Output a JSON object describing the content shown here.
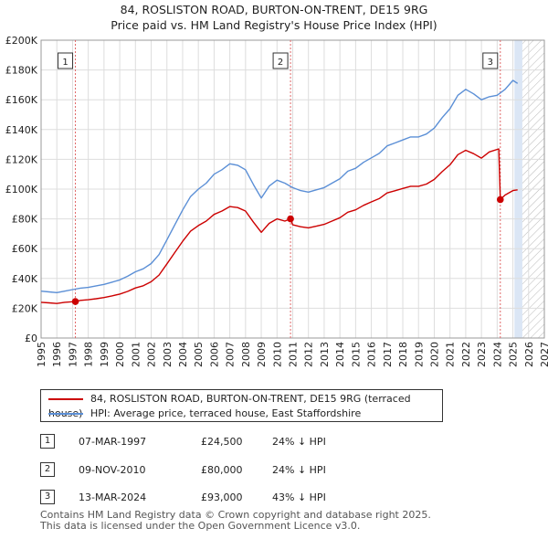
{
  "title_line1": "84, ROSLISTON ROAD, BURTON-ON-TRENT, DE15 9RG",
  "title_line2": "Price paid vs. HM Land Registry's House Price Index (HPI)",
  "colors": {
    "property": "#cc0000",
    "hpi": "#5b8fd6",
    "marker": "#cc0000",
    "vline": "#e06666"
  },
  "legend": {
    "property_label": "84, ROSLISTON ROAD, BURTON-ON-TRENT, DE15 9RG (terraced house)",
    "hpi_label": "HPI: Average price, terraced house, East Staffordshire"
  },
  "sales": [
    {
      "num": "1",
      "date": "07-MAR-1997",
      "price": "£24,500",
      "hpi_diff": "24% ↓ HPI",
      "year": 1997.18,
      "value": 24500
    },
    {
      "num": "2",
      "date": "09-NOV-2010",
      "price": "£80,000",
      "hpi_diff": "24% ↓ HPI",
      "year": 2010.86,
      "value": 80000
    },
    {
      "num": "3",
      "date": "13-MAR-2024",
      "price": "£93,000",
      "hpi_diff": "43% ↓ HPI",
      "year": 2024.2,
      "value": 93000
    }
  ],
  "footer_line1": "Contains HM Land Registry data © Crown copyright and database right 2025.",
  "footer_line2": "This data is licensed under the Open Government Licence v3.0.",
  "chart_data": {
    "type": "line",
    "title": "Price paid vs. HM Land Registry's House Price Index (HPI)",
    "xlim": [
      1995,
      2027
    ],
    "ylim": [
      0,
      200000
    ],
    "x_ticks": [
      "1995",
      "1996",
      "1997",
      "1998",
      "1999",
      "2000",
      "2001",
      "2002",
      "2003",
      "2004",
      "2005",
      "2006",
      "2007",
      "2008",
      "2009",
      "2010",
      "2011",
      "2012",
      "2013",
      "2014",
      "2015",
      "2016",
      "2017",
      "2018",
      "2019",
      "2020",
      "2021",
      "2022",
      "2023",
      "2024",
      "2025",
      "2026",
      "2027"
    ],
    "y_ticks": [
      {
        "value": 0,
        "label": "£0"
      },
      {
        "value": 20000,
        "label": "£20K"
      },
      {
        "value": 40000,
        "label": "£40K"
      },
      {
        "value": 60000,
        "label": "£60K"
      },
      {
        "value": 80000,
        "label": "£80K"
      },
      {
        "value": 100000,
        "label": "£100K"
      },
      {
        "value": 120000,
        "label": "£120K"
      },
      {
        "value": 140000,
        "label": "£140K"
      },
      {
        "value": 160000,
        "label": "£160K"
      },
      {
        "value": 180000,
        "label": "£180K"
      },
      {
        "value": 200000,
        "label": "£200K"
      }
    ],
    "shaded_from": 2025.1,
    "hatched_from": 2025.6,
    "series": [
      {
        "name": "HPI: Average price, terraced house, East Staffordshire",
        "x": [
          1995,
          1995.5,
          1996,
          1996.5,
          1997,
          1997.5,
          1998,
          1998.5,
          1999,
          1999.5,
          2000,
          2000.5,
          2001,
          2001.5,
          2002,
          2002.5,
          2003,
          2003.5,
          2004,
          2004.5,
          2005,
          2005.5,
          2006,
          2006.5,
          2007,
          2007.5,
          2008,
          2008.5,
          2009,
          2009.5,
          2010,
          2010.5,
          2011,
          2011.5,
          2012,
          2012.5,
          2013,
          2013.5,
          2014,
          2014.5,
          2015,
          2015.5,
          2016,
          2016.5,
          2017,
          2017.5,
          2018,
          2018.5,
          2019,
          2019.5,
          2020,
          2020.5,
          2021,
          2021.5,
          2022,
          2022.5,
          2023,
          2023.5,
          2024,
          2024.5,
          2025,
          2025.3
        ],
        "values": [
          31500,
          31000,
          30500,
          31500,
          32500,
          33500,
          34000,
          35000,
          36000,
          37500,
          39000,
          41500,
          44500,
          46500,
          50000,
          56000,
          66000,
          76000,
          86000,
          95000,
          100000,
          104000,
          110000,
          113000,
          117000,
          116000,
          113000,
          103000,
          94000,
          102000,
          106000,
          104000,
          101000,
          99000,
          98000,
          99500,
          101000,
          104000,
          107000,
          112000,
          114000,
          118000,
          121000,
          124000,
          129000,
          131000,
          133000,
          135000,
          135000,
          137000,
          141000,
          148000,
          154000,
          163000,
          167000,
          164000,
          160000,
          162000,
          163000,
          167000,
          173000,
          171000
        ]
      },
      {
        "name": "84, ROSLISTON ROAD, BURTON-ON-TRENT, DE15 9RG (terraced house)",
        "x": [
          1995,
          1995.5,
          1996,
          1996.5,
          1997.18,
          1997.5,
          1998,
          1998.5,
          1999,
          1999.5,
          2000,
          2000.5,
          2001,
          2001.5,
          2002,
          2002.5,
          2003,
          2003.5,
          2004,
          2004.5,
          2005,
          2005.5,
          2006,
          2006.5,
          2007,
          2007.5,
          2008,
          2008.5,
          2009,
          2009.5,
          2010,
          2010.5,
          2010.86,
          2011,
          2011.5,
          2012,
          2012.5,
          2013,
          2013.5,
          2014,
          2014.5,
          2015,
          2015.5,
          2016,
          2016.5,
          2017,
          2017.5,
          2018,
          2018.5,
          2019,
          2019.5,
          2020,
          2020.5,
          2021,
          2021.5,
          2022,
          2022.5,
          2023,
          2023.5,
          2024.1,
          2024.2,
          2024.5,
          2025,
          2025.3
        ],
        "values": [
          24000,
          23600,
          23200,
          24000,
          24500,
          25300,
          25700,
          26400,
          27200,
          28300,
          29500,
          31300,
          33600,
          35100,
          37800,
          42300,
          49800,
          57400,
          65000,
          71700,
          75500,
          78500,
          83000,
          85300,
          88300,
          87600,
          85300,
          77800,
          71000,
          77000,
          80000,
          78500,
          80000,
          76000,
          74700,
          74000,
          75100,
          76300,
          78500,
          80800,
          84500,
          86100,
          89100,
          91400,
          93600,
          97400,
          98900,
          100400,
          101900,
          101900,
          103400,
          106500,
          111700,
          116300,
          123100,
          126100,
          123800,
          120800,
          125000,
          127000,
          93000,
          96000,
          99000,
          99500
        ]
      }
    ]
  }
}
